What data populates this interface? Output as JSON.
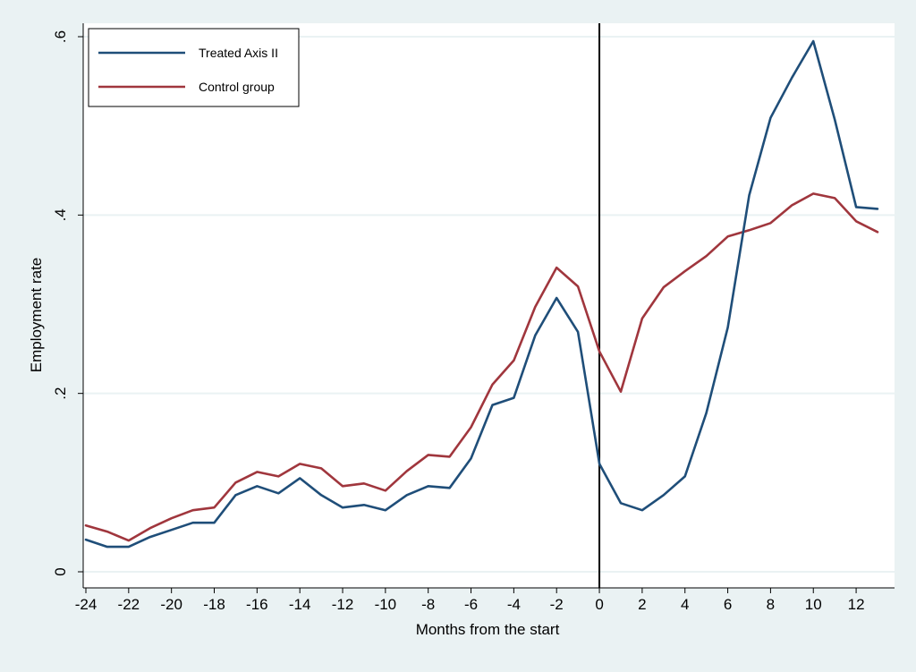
{
  "chart_data": {
    "type": "line",
    "title": "",
    "xlabel": "Months from the start",
    "ylabel": "Employment rate",
    "x": [
      -24,
      -23,
      -22,
      -21,
      -20,
      -19,
      -18,
      -17,
      -16,
      -15,
      -14,
      -13,
      -12,
      -11,
      -10,
      -9,
      -8,
      -7,
      -6,
      -5,
      -4,
      -3,
      -2,
      -1,
      0,
      1,
      2,
      3,
      4,
      5,
      6,
      7,
      8,
      9,
      10,
      11,
      12,
      13
    ],
    "series": [
      {
        "name": "Treated Axis II",
        "color": "#1f4e79",
        "values": [
          0.036,
          0.028,
          0.028,
          0.039,
          0.047,
          0.055,
          0.055,
          0.086,
          0.096,
          0.088,
          0.105,
          0.086,
          0.072,
          0.075,
          0.069,
          0.086,
          0.096,
          0.094,
          0.127,
          0.187,
          0.195,
          0.265,
          0.307,
          0.269,
          0.121,
          0.077,
          0.069,
          0.086,
          0.107,
          0.178,
          0.274,
          0.422,
          0.509,
          0.554,
          0.595,
          0.507,
          0.409,
          0.407
        ]
      },
      {
        "name": "Control group",
        "color": "#a0363d",
        "values": [
          0.052,
          0.045,
          0.035,
          0.049,
          0.06,
          0.069,
          0.072,
          0.1,
          0.112,
          0.107,
          0.121,
          0.116,
          0.096,
          0.099,
          0.091,
          0.113,
          0.131,
          0.129,
          0.162,
          0.21,
          0.237,
          0.297,
          0.341,
          0.32,
          0.247,
          0.202,
          0.284,
          0.319,
          0.337,
          0.354,
          0.376,
          0.383,
          0.391,
          0.411,
          0.424,
          0.419,
          0.393,
          0.381
        ]
      }
    ],
    "xticks": [
      -24,
      -22,
      -20,
      -18,
      -16,
      -14,
      -12,
      -10,
      -8,
      -6,
      -4,
      -2,
      0,
      2,
      4,
      6,
      8,
      10,
      12
    ],
    "xtick_labels": [
      "-24",
      "-22",
      "-20",
      "-18",
      "-16",
      "-14",
      "-12",
      "-10",
      "-8",
      "-6",
      "-4",
      "-2",
      "0",
      "2",
      "4",
      "6",
      "8",
      "10",
      "12"
    ],
    "yticks": [
      0,
      0.2,
      0.4,
      0.6
    ],
    "ytick_labels": [
      "0",
      ".2",
      ".4",
      ".6"
    ],
    "xlim": [
      -24,
      13
    ],
    "ylim": [
      0,
      0.6
    ],
    "grid": true,
    "vertical_reference_line_x": 0,
    "legend_position": "top-left",
    "background_color": "#eaf2f3",
    "plot_background_color": "#ffffff"
  }
}
